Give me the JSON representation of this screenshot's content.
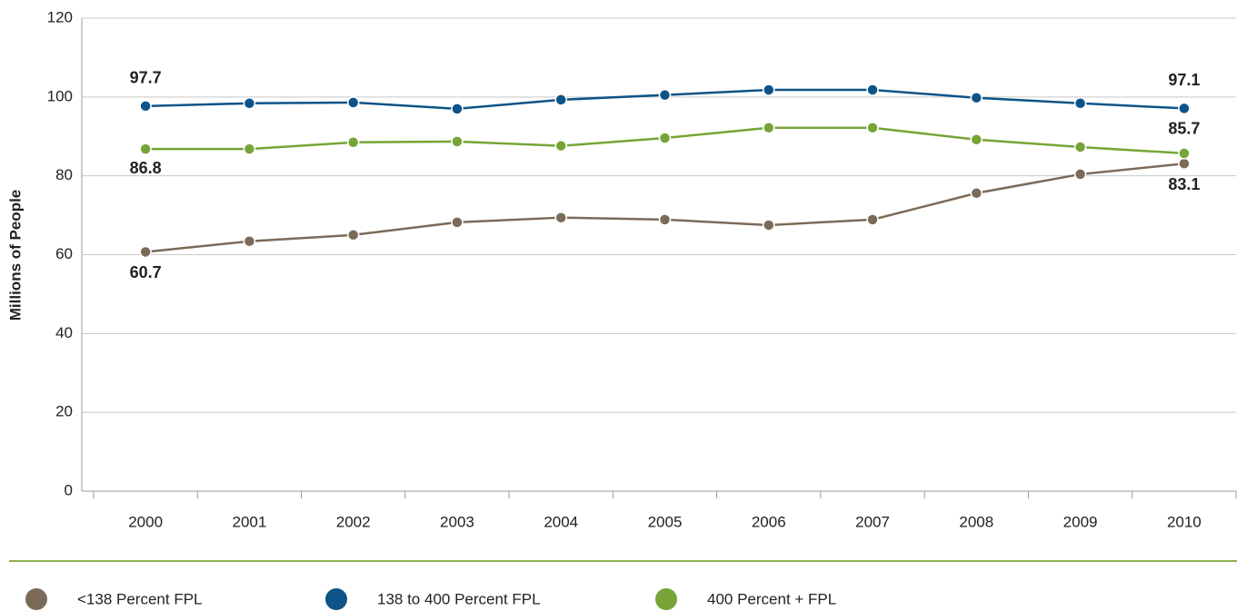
{
  "chart_data": {
    "type": "line",
    "y_label": "Millions of People",
    "categories": [
      "2000",
      "2001",
      "2002",
      "2003",
      "2004",
      "2005",
      "2006",
      "2007",
      "2008",
      "2009",
      "2010"
    ],
    "series": [
      {
        "name": "<138 Percent FPL",
        "color": "#7b6a58",
        "values": [
          60.7,
          63.4,
          65.0,
          68.2,
          69.4,
          68.9,
          67.5,
          68.9,
          75.6,
          80.4,
          83.1
        ]
      },
      {
        "name": "138 to 400 Percent FPL",
        "color": "#0d5388",
        "values": [
          97.7,
          98.4,
          98.6,
          97.0,
          99.3,
          100.5,
          101.8,
          101.8,
          99.8,
          98.4,
          97.1
        ]
      },
      {
        "name": "400 Percent + FPL",
        "color": "#77a436",
        "values": [
          86.8,
          86.8,
          88.5,
          88.7,
          87.6,
          89.6,
          92.2,
          92.2,
          89.2,
          87.3,
          85.7
        ]
      }
    ],
    "ylim": [
      0,
      120
    ],
    "yticks": [
      0,
      20,
      40,
      60,
      80,
      100,
      120
    ],
    "grid": true
  }
}
